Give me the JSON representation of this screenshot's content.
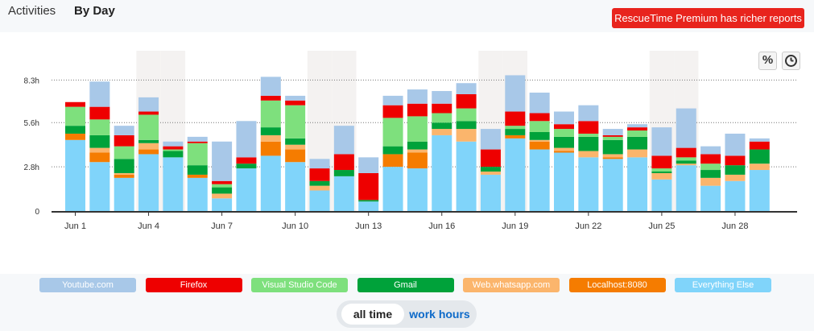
{
  "tabs": {
    "activities": "Activities",
    "by_day": "By Day"
  },
  "premium_button": "RescueTime Premium has richer reports",
  "tools": {
    "percent": "%"
  },
  "toggle": {
    "all_time": "all time",
    "work_hours": "work hours"
  },
  "chart_data": {
    "type": "bar",
    "stacked": true,
    "unit": "hours",
    "grid": "horizontal-dotted",
    "ylim": [
      0,
      9.6
    ],
    "y_ticks": [
      {
        "value": 0,
        "label": "0"
      },
      {
        "value": 2.8,
        "label": "2.8h"
      },
      {
        "value": 5.6,
        "label": "5.6h"
      },
      {
        "value": 8.3,
        "label": "8.3h"
      }
    ],
    "x_tick_labels": [
      {
        "index": 0,
        "label": "Jun 1"
      },
      {
        "index": 3,
        "label": "Jun 4"
      },
      {
        "index": 6,
        "label": "Jun 7"
      },
      {
        "index": 9,
        "label": "Jun 10"
      },
      {
        "index": 12,
        "label": "Jun 13"
      },
      {
        "index": 15,
        "label": "Jun 16"
      },
      {
        "index": 18,
        "label": "Jun 19"
      },
      {
        "index": 21,
        "label": "Jun 22"
      },
      {
        "index": 24,
        "label": "Jun 25"
      },
      {
        "index": 27,
        "label": "Jun 28"
      }
    ],
    "weekend_indices": [
      3,
      4,
      10,
      11,
      17,
      18,
      24,
      25
    ],
    "categories": [
      "Jun 1",
      "Jun 2",
      "Jun 3",
      "Jun 4",
      "Jun 5",
      "Jun 6",
      "Jun 7",
      "Jun 8",
      "Jun 9",
      "Jun 10",
      "Jun 11",
      "Jun 12",
      "Jun 13",
      "Jun 14",
      "Jun 15",
      "Jun 16",
      "Jun 17",
      "Jun 18",
      "Jun 19",
      "Jun 20",
      "Jun 21",
      "Jun 22",
      "Jun 23",
      "Jun 24",
      "Jun 25",
      "Jun 26",
      "Jun 27",
      "Jun 28",
      "Jun 29"
    ],
    "series": [
      {
        "name": "Everything Else",
        "color": "#80d4fa",
        "values": [
          4.5,
          3.1,
          2.1,
          3.6,
          3.4,
          2.1,
          0.8,
          2.7,
          3.5,
          3.1,
          1.3,
          2.2,
          0.6,
          2.8,
          2.7,
          4.8,
          4.4,
          2.3,
          4.6,
          3.9,
          3.7,
          3.4,
          3.3,
          3.4,
          2.0,
          2.9,
          1.6,
          1.9,
          2.6
        ]
      },
      {
        "name": "Localhost:8080",
        "color": "#f57c00",
        "values": [
          0.4,
          0.6,
          0.2,
          0.3,
          0,
          0.2,
          0,
          0,
          0.9,
          0.8,
          0,
          0,
          0,
          0.8,
          1.0,
          0,
          0,
          0,
          0.2,
          0.5,
          0.1,
          0,
          0.1,
          0,
          0,
          0,
          0,
          0,
          0
        ]
      },
      {
        "name": "Web.whatsapp.com",
        "color": "#fbb56c",
        "values": [
          0,
          0.3,
          0.1,
          0.4,
          0,
          0,
          0.3,
          0,
          0.4,
          0.3,
          0.3,
          0,
          0,
          0,
          0.2,
          0.4,
          0.8,
          0.2,
          0,
          0.1,
          0.2,
          0.4,
          0.2,
          0.5,
          0.4,
          0.1,
          0.5,
          0.4,
          0.4
        ]
      },
      {
        "name": "Gmail",
        "color": "#00a23a",
        "values": [
          0.5,
          0.8,
          0.9,
          0.2,
          0.4,
          0.6,
          0.4,
          0.3,
          0.5,
          0.4,
          0.3,
          0.4,
          0.1,
          0.5,
          0.5,
          0.4,
          0.5,
          0.3,
          0.4,
          0.5,
          0.7,
          0.9,
          0.9,
          0.8,
          0.1,
          0.2,
          0.5,
          0.6,
          0.9
        ]
      },
      {
        "name": "Visual Studio Code",
        "color": "#7ee07d",
        "values": [
          1.2,
          1.0,
          0.8,
          1.6,
          0.1,
          1.4,
          0.2,
          0,
          1.7,
          2.1,
          0,
          0,
          0,
          1.8,
          1.6,
          0.6,
          0.8,
          0,
          0.2,
          0.7,
          0.5,
          0.2,
          0.2,
          0.4,
          0.2,
          0.2,
          0.4,
          0,
          0
        ]
      },
      {
        "name": "Firefox",
        "color": "#ee0000",
        "values": [
          0.3,
          0.8,
          0.7,
          0.2,
          0.2,
          0.1,
          0.2,
          0.4,
          0.3,
          0.3,
          0.8,
          1.0,
          1.7,
          0.8,
          0.8,
          0.6,
          0.9,
          1.1,
          0.9,
          0.5,
          0.3,
          0.8,
          0.1,
          0.2,
          0.8,
          0.6,
          0.6,
          0.6,
          0.5
        ]
      },
      {
        "name": "Youtube.com",
        "color": "#a8c8e8",
        "values": [
          0,
          1.6,
          0.6,
          0.9,
          0.3,
          0.3,
          2.5,
          2.3,
          1.2,
          0.3,
          0.6,
          1.8,
          1.0,
          0.6,
          0.9,
          0.8,
          0.7,
          1.3,
          2.3,
          1.3,
          0.8,
          1.0,
          0.4,
          0.2,
          1.8,
          2.5,
          0.5,
          1.4,
          0.2
        ]
      }
    ]
  }
}
